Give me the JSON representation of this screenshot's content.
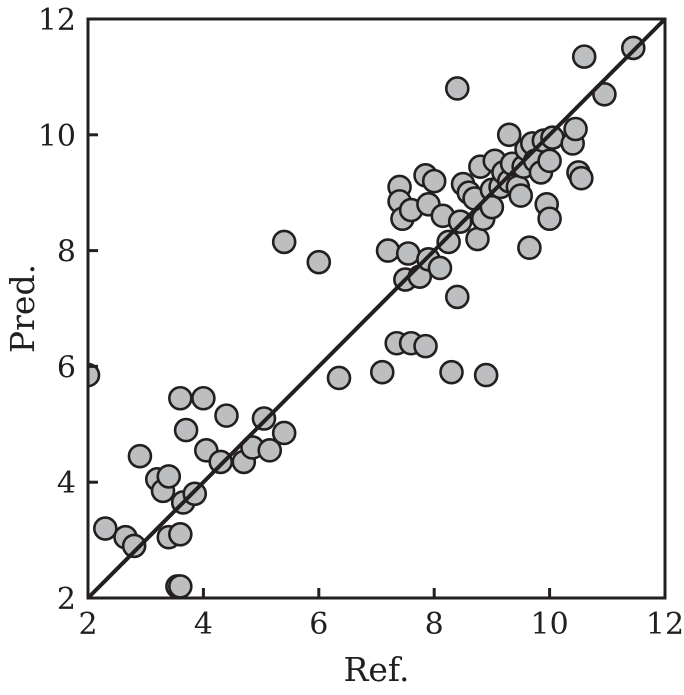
{
  "chart_data": {
    "type": "scatter",
    "title": "",
    "xlabel": "Ref.",
    "ylabel": "Pred.",
    "xlim": [
      2,
      12
    ],
    "ylim": [
      2,
      12
    ],
    "xticks": [
      "2",
      "4",
      "6",
      "8",
      "10",
      "12"
    ],
    "yticks": [
      "2",
      "4",
      "6",
      "8",
      "10",
      "12"
    ],
    "grid": false,
    "legend": "none",
    "reference_line": {
      "from": [
        2,
        2
      ],
      "to": [
        12,
        12
      ]
    },
    "colors": {
      "marker_fill": "#bcbec0",
      "marker_stroke": "#231f20",
      "line": "#231f20",
      "axis": "#231f20"
    },
    "points": [
      [
        2.0,
        5.85
      ],
      [
        2.3,
        3.2
      ],
      [
        2.65,
        3.05
      ],
      [
        2.8,
        2.9
      ],
      [
        2.9,
        4.45
      ],
      [
        3.2,
        4.05
      ],
      [
        3.3,
        3.85
      ],
      [
        3.4,
        4.1
      ],
      [
        3.4,
        3.05
      ],
      [
        3.55,
        2.2
      ],
      [
        3.6,
        2.2
      ],
      [
        3.6,
        3.1
      ],
      [
        3.6,
        5.45
      ],
      [
        3.65,
        3.65
      ],
      [
        3.7,
        4.9
      ],
      [
        3.85,
        3.8
      ],
      [
        4.0,
        5.45
      ],
      [
        4.05,
        4.55
      ],
      [
        4.3,
        4.35
      ],
      [
        4.4,
        5.15
      ],
      [
        4.7,
        4.35
      ],
      [
        4.85,
        4.6
      ],
      [
        5.05,
        5.1
      ],
      [
        5.15,
        4.55
      ],
      [
        5.4,
        4.85
      ],
      [
        5.4,
        8.15
      ],
      [
        6.0,
        7.8
      ],
      [
        6.35,
        5.8
      ],
      [
        7.1,
        5.9
      ],
      [
        7.2,
        8.0
      ],
      [
        7.35,
        6.4
      ],
      [
        7.4,
        9.1
      ],
      [
        7.4,
        8.85
      ],
      [
        7.45,
        8.55
      ],
      [
        7.5,
        7.5
      ],
      [
        7.55,
        7.95
      ],
      [
        7.6,
        6.4
      ],
      [
        7.6,
        8.7
      ],
      [
        7.75,
        7.55
      ],
      [
        7.85,
        6.35
      ],
      [
        7.85,
        9.3
      ],
      [
        7.9,
        8.8
      ],
      [
        7.9,
        7.85
      ],
      [
        8.0,
        9.2
      ],
      [
        8.1,
        7.7
      ],
      [
        8.15,
        8.6
      ],
      [
        8.25,
        8.15
      ],
      [
        8.3,
        5.9
      ],
      [
        8.4,
        7.2
      ],
      [
        8.4,
        10.8
      ],
      [
        8.45,
        8.5
      ],
      [
        8.5,
        9.15
      ],
      [
        8.6,
        9.0
      ],
      [
        8.7,
        8.9
      ],
      [
        8.75,
        8.2
      ],
      [
        8.8,
        9.45
      ],
      [
        8.85,
        8.55
      ],
      [
        8.9,
        5.85
      ],
      [
        9.0,
        9.05
      ],
      [
        9.0,
        8.75
      ],
      [
        9.05,
        9.55
      ],
      [
        9.15,
        9.1
      ],
      [
        9.2,
        9.35
      ],
      [
        9.3,
        10.0
      ],
      [
        9.3,
        9.2
      ],
      [
        9.35,
        9.5
      ],
      [
        9.45,
        9.1
      ],
      [
        9.5,
        8.95
      ],
      [
        9.55,
        9.45
      ],
      [
        9.6,
        9.75
      ],
      [
        9.65,
        8.05
      ],
      [
        9.7,
        9.85
      ],
      [
        9.75,
        9.55
      ],
      [
        9.85,
        9.35
      ],
      [
        9.9,
        9.9
      ],
      [
        9.95,
        8.8
      ],
      [
        10.0,
        9.55
      ],
      [
        10.0,
        8.55
      ],
      [
        10.05,
        9.95
      ],
      [
        10.4,
        9.85
      ],
      [
        10.45,
        10.1
      ],
      [
        10.5,
        9.35
      ],
      [
        10.55,
        9.25
      ],
      [
        10.6,
        11.35
      ],
      [
        10.95,
        10.7
      ],
      [
        11.45,
        11.5
      ]
    ]
  }
}
